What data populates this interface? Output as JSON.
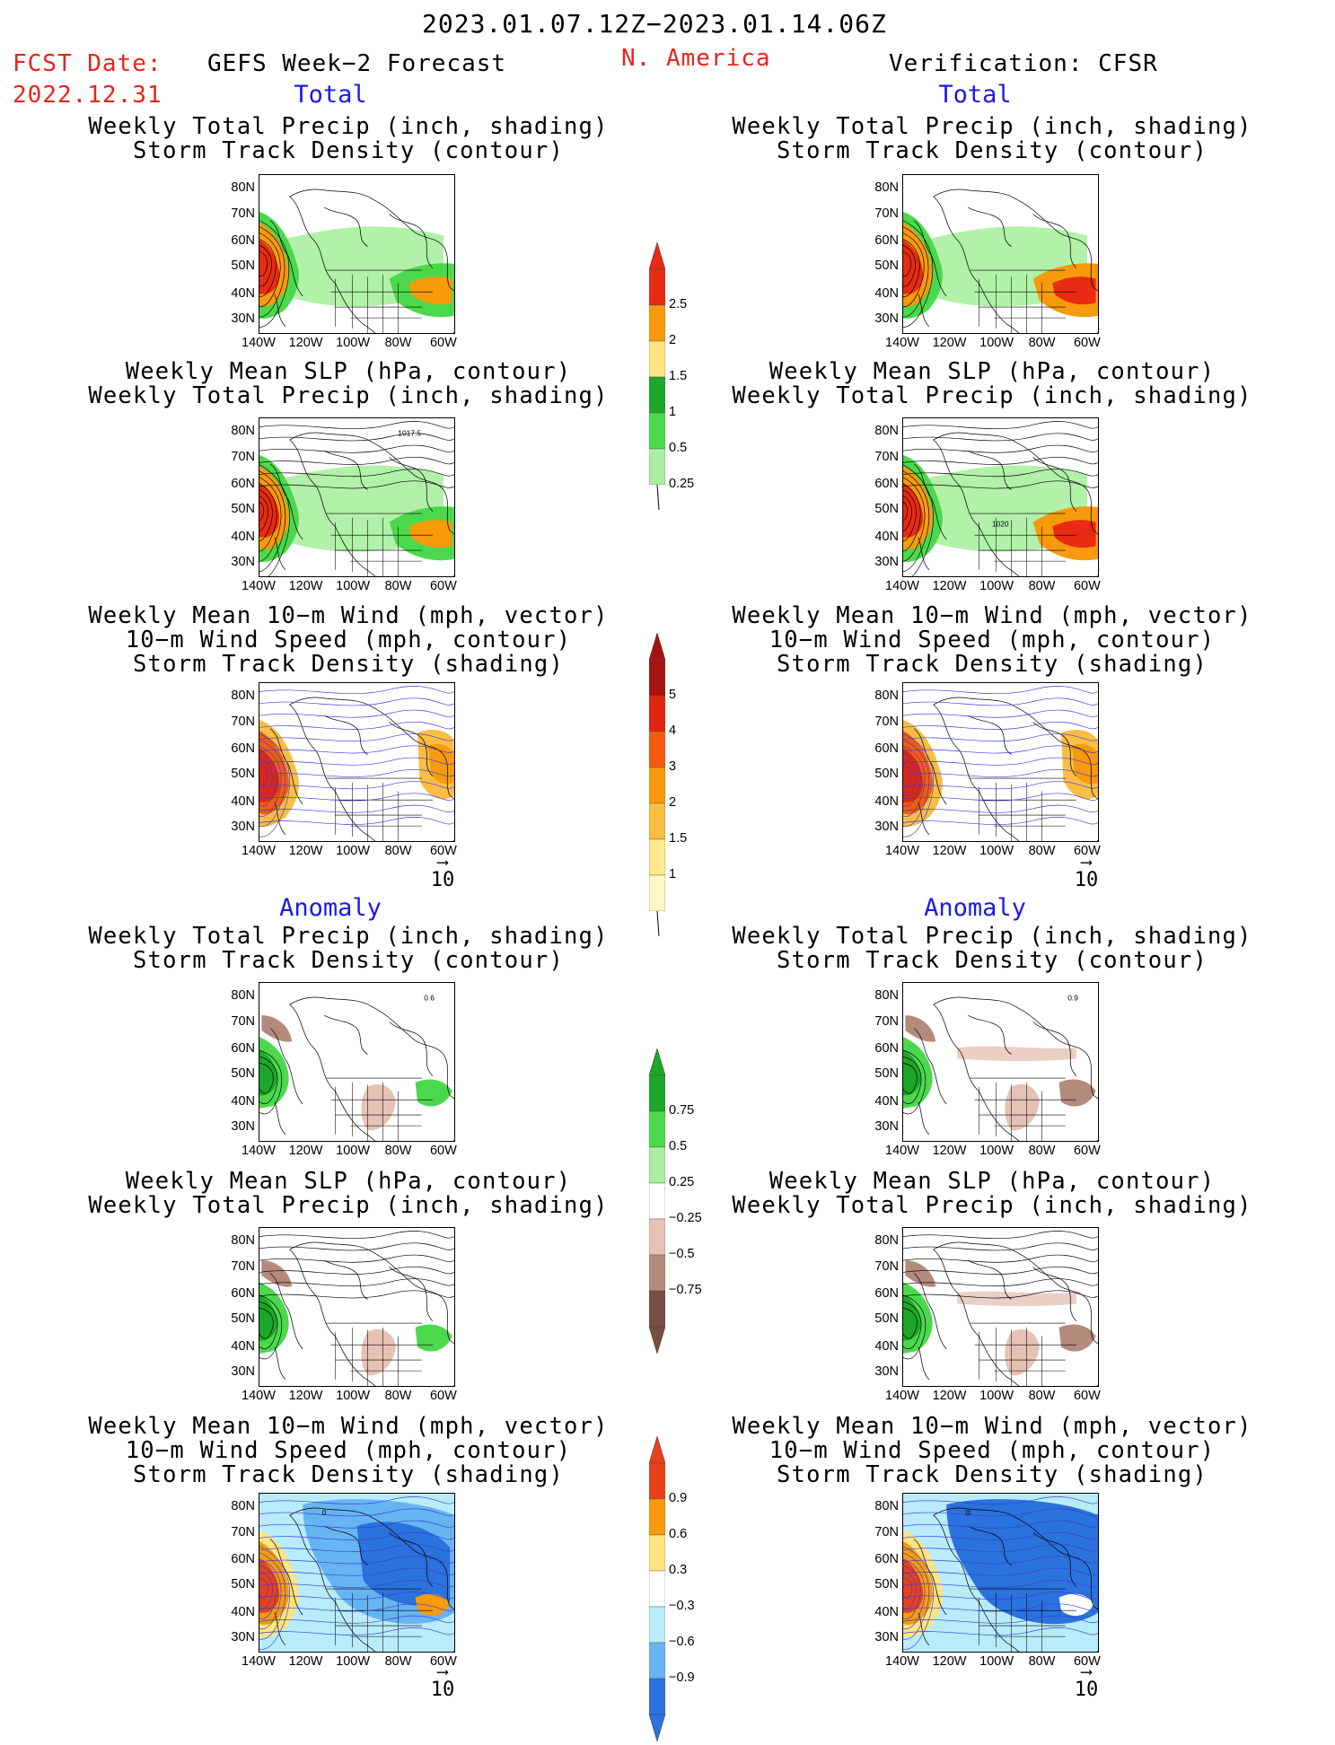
{
  "header": {
    "date_range": "2023.01.07.12Z−2023.01.14.06Z",
    "fcst_label": "FCST Date:",
    "fcst_date": "2022.12.31",
    "forecast_label": "GEFS Week−2 Forecast",
    "region": "N. America",
    "verification_label": "Verification: CFSR"
  },
  "sections": {
    "total": "Total",
    "anomaly": "Anomaly"
  },
  "panel_titles": {
    "precip_track": [
      "Weekly Total Precip (inch, shading)",
      "Storm Track Density (contour)"
    ],
    "slp_precip": [
      "Weekly Mean SLP (hPa, contour)",
      "Weekly Total Precip (inch, shading)"
    ],
    "wind_track": [
      "Weekly Mean 10−m Wind (mph, vector)",
      "10−m Wind Speed (mph, contour)",
      "Storm Track Density (shading)"
    ]
  },
  "axes": {
    "lat_labels": [
      "80N",
      "70N",
      "60N",
      "50N",
      "40N",
      "30N"
    ],
    "lon_labels": [
      "140W",
      "120W",
      "100W",
      "80W",
      "60W"
    ]
  },
  "panel_annotations": {
    "forecast_slp_label": "1017.5",
    "verification_slp_label": "1020",
    "forecast_anom_track_label": "0.6",
    "verification_anom_track_label": "0.9",
    "forecast_anom_wind_label": "0",
    "verification_anom_wind_label": "0"
  },
  "vector_reference": "10",
  "colorbars": {
    "precip_total": {
      "labels": [
        "2.5",
        "2",
        "1.5",
        "1",
        "0.5",
        "0.25"
      ],
      "colors": [
        "#e82b12",
        "#f79a0c",
        "#fde480",
        "#1da629",
        "#4cd84c",
        "#a8f0a0"
      ]
    },
    "track_total": {
      "labels": [
        "5",
        "4",
        "3",
        "2",
        "1.5",
        "1"
      ],
      "colors": [
        "#a51410",
        "#e2250f",
        "#f55b0c",
        "#f79a0c",
        "#fbbd44",
        "#fee98c",
        "#fff8c4"
      ]
    },
    "precip_anom": {
      "labels": [
        "0.75",
        "0.5",
        "0.25",
        "−0.25",
        "−0.5",
        "−0.75"
      ],
      "colors": [
        "#1da629",
        "#4cd84c",
        "#a8f0a0",
        "#ffffff",
        "#e6c2b5",
        "#b48a7a",
        "#7a4f40"
      ]
    },
    "track_anom": {
      "labels": [
        "0.9",
        "0.6",
        "0.3",
        "−0.3",
        "−0.6",
        "−0.9"
      ],
      "colors": [
        "#e8401a",
        "#f79a0c",
        "#fde480",
        "#ffffff",
        "#b8ecfa",
        "#66b4f2",
        "#2a72dc"
      ]
    }
  }
}
